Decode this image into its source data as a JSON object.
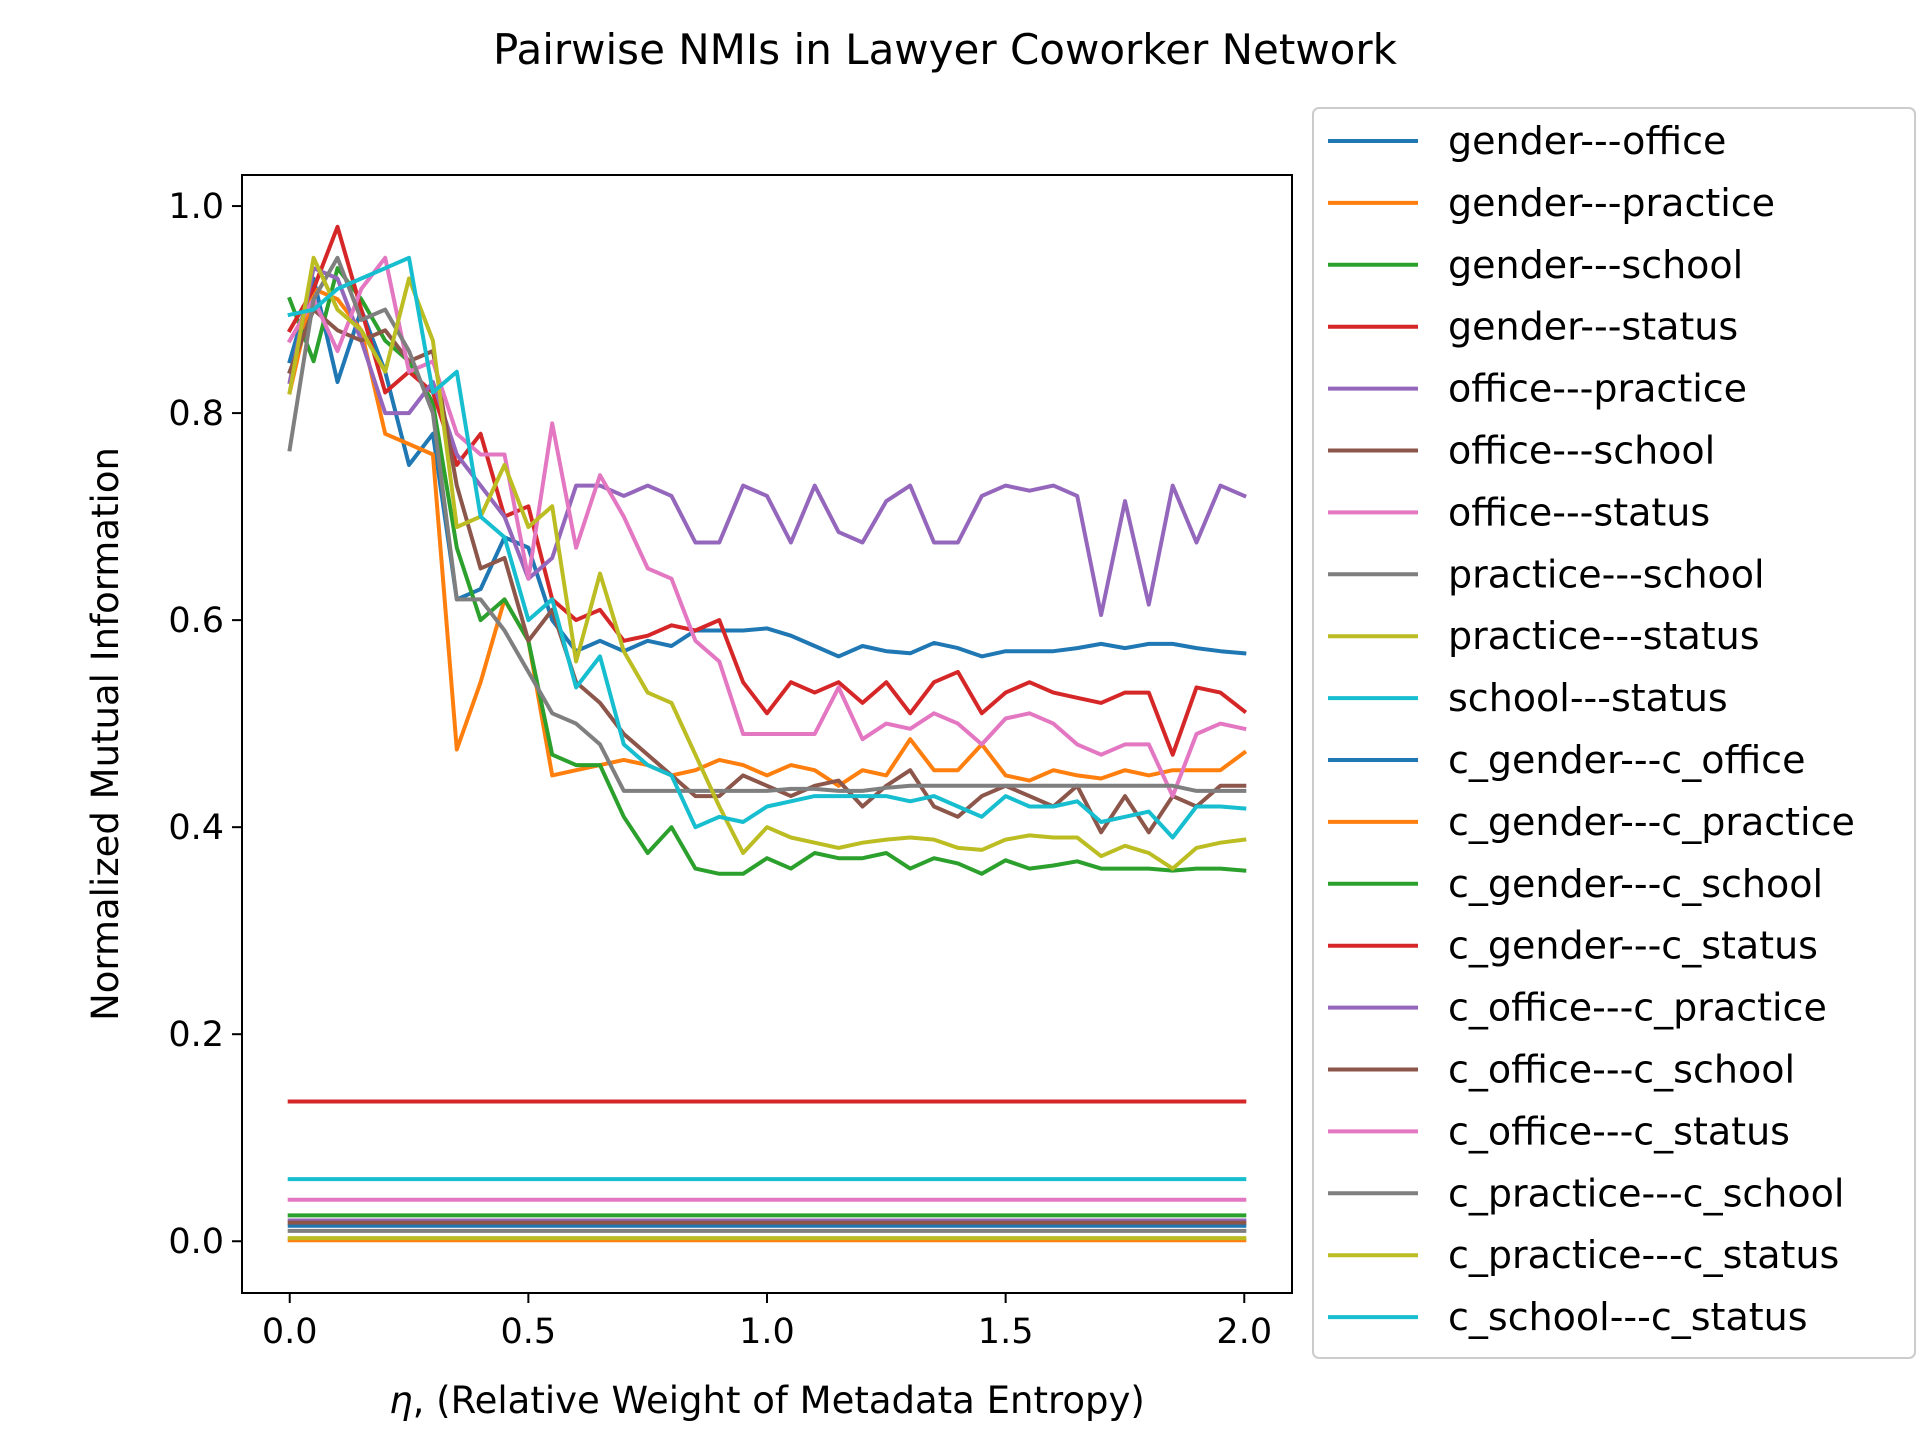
{
  "chart_data": {
    "type": "line",
    "title": "Pairwise NMIs in Lawyer Coworker Network",
    "xlabel_symbol": "η",
    "xlabel_rest": ", (Relative Weight of Metadata Entropy)",
    "ylabel": "Normalized Mutual Information",
    "xlim": [
      -0.1,
      2.1
    ],
    "ylim": [
      -0.05,
      1.03
    ],
    "xticks": [
      0.0,
      0.5,
      1.0,
      1.5,
      2.0
    ],
    "xtick_labels": [
      "0.0",
      "0.5",
      "1.0",
      "1.5",
      "2.0"
    ],
    "yticks": [
      0.0,
      0.2,
      0.4,
      0.6,
      0.8,
      1.0
    ],
    "ytick_labels": [
      "0.0",
      "0.2",
      "0.4",
      "0.6",
      "0.8",
      "1.0"
    ],
    "grid": false,
    "legend_position": "outside right",
    "x": [
      0.0,
      0.05,
      0.1,
      0.15,
      0.2,
      0.25,
      0.3,
      0.35,
      0.4,
      0.45,
      0.5,
      0.55,
      0.6,
      0.65,
      0.7,
      0.75,
      0.8,
      0.85,
      0.9,
      0.95,
      1.0,
      1.05,
      1.1,
      1.15,
      1.2,
      1.25,
      1.3,
      1.35,
      1.4,
      1.45,
      1.5,
      1.55,
      1.6,
      1.65,
      1.7,
      1.75,
      1.8,
      1.85,
      1.9,
      1.95,
      2.0
    ],
    "series": [
      {
        "name": "gender---office",
        "color": "#1f77b4",
        "values": [
          0.015,
          0.015,
          0.015,
          0.015,
          0.015,
          0.015,
          0.015,
          0.015,
          0.015,
          0.015,
          0.015,
          0.015,
          0.015,
          0.015,
          0.015,
          0.015,
          0.015,
          0.015,
          0.015,
          0.015,
          0.015,
          0.015,
          0.015,
          0.015,
          0.015,
          0.015,
          0.015,
          0.015,
          0.015,
          0.015,
          0.015,
          0.015,
          0.015,
          0.015,
          0.015,
          0.015,
          0.015,
          0.015,
          0.015,
          0.015,
          0.015
        ]
      },
      {
        "name": "gender---practice",
        "color": "#ff7f0e",
        "values": [
          0.001,
          0.001,
          0.001,
          0.001,
          0.001,
          0.001,
          0.001,
          0.001,
          0.001,
          0.001,
          0.001,
          0.001,
          0.001,
          0.001,
          0.001,
          0.001,
          0.001,
          0.001,
          0.001,
          0.001,
          0.001,
          0.001,
          0.001,
          0.001,
          0.001,
          0.001,
          0.001,
          0.001,
          0.001,
          0.001,
          0.001,
          0.001,
          0.001,
          0.001,
          0.001,
          0.001,
          0.001,
          0.001,
          0.001,
          0.001,
          0.001
        ]
      },
      {
        "name": "gender---school",
        "color": "#2ca02c",
        "values": [
          0.025,
          0.025,
          0.025,
          0.025,
          0.025,
          0.025,
          0.025,
          0.025,
          0.025,
          0.025,
          0.025,
          0.025,
          0.025,
          0.025,
          0.025,
          0.025,
          0.025,
          0.025,
          0.025,
          0.025,
          0.025,
          0.025,
          0.025,
          0.025,
          0.025,
          0.025,
          0.025,
          0.025,
          0.025,
          0.025,
          0.025,
          0.025,
          0.025,
          0.025,
          0.025,
          0.025,
          0.025,
          0.025,
          0.025,
          0.025,
          0.025
        ]
      },
      {
        "name": "gender---status",
        "color": "#d62728",
        "values": [
          0.135,
          0.135,
          0.135,
          0.135,
          0.135,
          0.135,
          0.135,
          0.135,
          0.135,
          0.135,
          0.135,
          0.135,
          0.135,
          0.135,
          0.135,
          0.135,
          0.135,
          0.135,
          0.135,
          0.135,
          0.135,
          0.135,
          0.135,
          0.135,
          0.135,
          0.135,
          0.135,
          0.135,
          0.135,
          0.135,
          0.135,
          0.135,
          0.135,
          0.135,
          0.135,
          0.135,
          0.135,
          0.135,
          0.135,
          0.135,
          0.135
        ]
      },
      {
        "name": "office---practice",
        "color": "#9467bd",
        "values": [
          0.02,
          0.02,
          0.02,
          0.02,
          0.02,
          0.02,
          0.02,
          0.02,
          0.02,
          0.02,
          0.02,
          0.02,
          0.02,
          0.02,
          0.02,
          0.02,
          0.02,
          0.02,
          0.02,
          0.02,
          0.02,
          0.02,
          0.02,
          0.02,
          0.02,
          0.02,
          0.02,
          0.02,
          0.02,
          0.02,
          0.02,
          0.02,
          0.02,
          0.02,
          0.02,
          0.02,
          0.02,
          0.02,
          0.02,
          0.02,
          0.02
        ]
      },
      {
        "name": "office---school",
        "color": "#8c564b",
        "values": [
          0.018,
          0.018,
          0.018,
          0.018,
          0.018,
          0.018,
          0.018,
          0.018,
          0.018,
          0.018,
          0.018,
          0.018,
          0.018,
          0.018,
          0.018,
          0.018,
          0.018,
          0.018,
          0.018,
          0.018,
          0.018,
          0.018,
          0.018,
          0.018,
          0.018,
          0.018,
          0.018,
          0.018,
          0.018,
          0.018,
          0.018,
          0.018,
          0.018,
          0.018,
          0.018,
          0.018,
          0.018,
          0.018,
          0.018,
          0.018,
          0.018
        ]
      },
      {
        "name": "office---status",
        "color": "#e377c2",
        "values": [
          0.04,
          0.04,
          0.04,
          0.04,
          0.04,
          0.04,
          0.04,
          0.04,
          0.04,
          0.04,
          0.04,
          0.04,
          0.04,
          0.04,
          0.04,
          0.04,
          0.04,
          0.04,
          0.04,
          0.04,
          0.04,
          0.04,
          0.04,
          0.04,
          0.04,
          0.04,
          0.04,
          0.04,
          0.04,
          0.04,
          0.04,
          0.04,
          0.04,
          0.04,
          0.04,
          0.04,
          0.04,
          0.04,
          0.04,
          0.04,
          0.04
        ]
      },
      {
        "name": "practice---school",
        "color": "#7f7f7f",
        "values": [
          0.01,
          0.01,
          0.01,
          0.01,
          0.01,
          0.01,
          0.01,
          0.01,
          0.01,
          0.01,
          0.01,
          0.01,
          0.01,
          0.01,
          0.01,
          0.01,
          0.01,
          0.01,
          0.01,
          0.01,
          0.01,
          0.01,
          0.01,
          0.01,
          0.01,
          0.01,
          0.01,
          0.01,
          0.01,
          0.01,
          0.01,
          0.01,
          0.01,
          0.01,
          0.01,
          0.01,
          0.01,
          0.01,
          0.01,
          0.01,
          0.01
        ]
      },
      {
        "name": "practice---status",
        "color": "#bcbd22",
        "values": [
          0.003,
          0.003,
          0.003,
          0.003,
          0.003,
          0.003,
          0.003,
          0.003,
          0.003,
          0.003,
          0.003,
          0.003,
          0.003,
          0.003,
          0.003,
          0.003,
          0.003,
          0.003,
          0.003,
          0.003,
          0.003,
          0.003,
          0.003,
          0.003,
          0.003,
          0.003,
          0.003,
          0.003,
          0.003,
          0.003,
          0.003,
          0.003,
          0.003,
          0.003,
          0.003,
          0.003,
          0.003,
          0.003,
          0.003,
          0.003,
          0.003
        ]
      },
      {
        "name": "school---status",
        "color": "#17becf",
        "values": [
          0.06,
          0.06,
          0.06,
          0.06,
          0.06,
          0.06,
          0.06,
          0.06,
          0.06,
          0.06,
          0.06,
          0.06,
          0.06,
          0.06,
          0.06,
          0.06,
          0.06,
          0.06,
          0.06,
          0.06,
          0.06,
          0.06,
          0.06,
          0.06,
          0.06,
          0.06,
          0.06,
          0.06,
          0.06,
          0.06,
          0.06,
          0.06,
          0.06,
          0.06,
          0.06,
          0.06,
          0.06,
          0.06,
          0.06,
          0.06,
          0.06
        ]
      },
      {
        "name": "c_gender---c_office",
        "color": "#1f77b4",
        "values": [
          0.85,
          0.93,
          0.83,
          0.9,
          0.84,
          0.75,
          0.78,
          0.62,
          0.63,
          0.68,
          0.67,
          0.6,
          0.57,
          0.58,
          0.57,
          0.58,
          0.575,
          0.59,
          0.59,
          0.59,
          0.592,
          0.585,
          0.575,
          0.565,
          0.575,
          0.57,
          0.568,
          0.578,
          0.573,
          0.565,
          0.57,
          0.57,
          0.57,
          0.573,
          0.577,
          0.573,
          0.577,
          0.577,
          0.573,
          0.57,
          0.568
        ]
      },
      {
        "name": "c_gender---c_practice",
        "color": "#ff7f0e",
        "values": [
          0.82,
          0.92,
          0.91,
          0.88,
          0.78,
          0.77,
          0.76,
          0.475,
          0.54,
          0.62,
          0.58,
          0.45,
          0.455,
          0.46,
          0.465,
          0.46,
          0.45,
          0.455,
          0.465,
          0.46,
          0.45,
          0.46,
          0.455,
          0.44,
          0.455,
          0.45,
          0.485,
          0.455,
          0.455,
          0.48,
          0.45,
          0.445,
          0.455,
          0.45,
          0.447,
          0.455,
          0.45,
          0.455,
          0.455,
          0.455,
          0.472
        ]
      },
      {
        "name": "c_gender---c_school",
        "color": "#2ca02c",
        "values": [
          0.91,
          0.85,
          0.94,
          0.91,
          0.87,
          0.85,
          0.81,
          0.67,
          0.6,
          0.62,
          0.58,
          0.47,
          0.46,
          0.46,
          0.41,
          0.375,
          0.4,
          0.36,
          0.355,
          0.355,
          0.37,
          0.36,
          0.375,
          0.37,
          0.37,
          0.375,
          0.36,
          0.37,
          0.365,
          0.355,
          0.368,
          0.36,
          0.363,
          0.367,
          0.36,
          0.36,
          0.36,
          0.358,
          0.36,
          0.36,
          0.358
        ]
      },
      {
        "name": "c_gender---c_status",
        "color": "#d62728",
        "values": [
          0.88,
          0.92,
          0.98,
          0.9,
          0.82,
          0.84,
          0.82,
          0.75,
          0.78,
          0.7,
          0.71,
          0.62,
          0.6,
          0.61,
          0.58,
          0.585,
          0.595,
          0.59,
          0.6,
          0.54,
          0.51,
          0.54,
          0.53,
          0.54,
          0.52,
          0.54,
          0.51,
          0.54,
          0.55,
          0.51,
          0.53,
          0.54,
          0.53,
          0.525,
          0.52,
          0.53,
          0.53,
          0.47,
          0.535,
          0.53,
          0.512
        ]
      },
      {
        "name": "c_office---c_practice",
        "color": "#9467bd",
        "values": [
          0.83,
          0.94,
          0.93,
          0.87,
          0.8,
          0.8,
          0.83,
          0.76,
          0.73,
          0.7,
          0.64,
          0.66,
          0.73,
          0.73,
          0.72,
          0.73,
          0.72,
          0.675,
          0.675,
          0.73,
          0.72,
          0.675,
          0.73,
          0.685,
          0.675,
          0.715,
          0.73,
          0.675,
          0.675,
          0.72,
          0.73,
          0.725,
          0.73,
          0.72,
          0.605,
          0.715,
          0.615,
          0.73,
          0.675,
          0.73,
          0.72
        ]
      },
      {
        "name": "c_office---c_school",
        "color": "#8c564b",
        "values": [
          0.84,
          0.9,
          0.88,
          0.87,
          0.88,
          0.85,
          0.86,
          0.73,
          0.65,
          0.66,
          0.58,
          0.61,
          0.54,
          0.52,
          0.49,
          0.47,
          0.45,
          0.43,
          0.43,
          0.45,
          0.44,
          0.43,
          0.44,
          0.445,
          0.42,
          0.44,
          0.455,
          0.42,
          0.41,
          0.43,
          0.44,
          0.43,
          0.42,
          0.44,
          0.395,
          0.43,
          0.395,
          0.43,
          0.42,
          0.44,
          0.44
        ]
      },
      {
        "name": "c_office---c_status",
        "color": "#e377c2",
        "values": [
          0.87,
          0.91,
          0.86,
          0.92,
          0.95,
          0.84,
          0.85,
          0.78,
          0.76,
          0.76,
          0.64,
          0.79,
          0.67,
          0.74,
          0.7,
          0.65,
          0.64,
          0.58,
          0.56,
          0.49,
          0.49,
          0.49,
          0.49,
          0.535,
          0.485,
          0.5,
          0.495,
          0.51,
          0.5,
          0.48,
          0.505,
          0.51,
          0.5,
          0.48,
          0.47,
          0.48,
          0.48,
          0.43,
          0.49,
          0.5,
          0.495
        ]
      },
      {
        "name": "c_practice---c_school",
        "color": "#7f7f7f",
        "values": [
          0.765,
          0.91,
          0.95,
          0.89,
          0.9,
          0.86,
          0.8,
          0.62,
          0.62,
          0.59,
          0.55,
          0.51,
          0.5,
          0.48,
          0.435,
          0.435,
          0.435,
          0.435,
          0.435,
          0.435,
          0.435,
          0.437,
          0.437,
          0.435,
          0.435,
          0.438,
          0.44,
          0.44,
          0.44,
          0.44,
          0.44,
          0.44,
          0.44,
          0.44,
          0.44,
          0.44,
          0.44,
          0.44,
          0.435,
          0.435,
          0.435
        ]
      },
      {
        "name": "c_practice---c_status",
        "color": "#bcbd22",
        "values": [
          0.82,
          0.95,
          0.9,
          0.88,
          0.84,
          0.93,
          0.87,
          0.69,
          0.7,
          0.75,
          0.69,
          0.71,
          0.56,
          0.645,
          0.57,
          0.53,
          0.52,
          0.47,
          0.42,
          0.375,
          0.4,
          0.39,
          0.385,
          0.38,
          0.385,
          0.388,
          0.39,
          0.388,
          0.38,
          0.378,
          0.388,
          0.392,
          0.39,
          0.39,
          0.372,
          0.382,
          0.375,
          0.36,
          0.38,
          0.385,
          0.388
        ]
      },
      {
        "name": "c_school---c_status",
        "color": "#17becf",
        "values": [
          0.895,
          0.9,
          0.92,
          0.93,
          0.94,
          0.95,
          0.82,
          0.84,
          0.7,
          0.68,
          0.6,
          0.62,
          0.535,
          0.565,
          0.48,
          0.46,
          0.45,
          0.4,
          0.41,
          0.405,
          0.42,
          0.425,
          0.43,
          0.43,
          0.43,
          0.43,
          0.425,
          0.43,
          0.42,
          0.41,
          0.43,
          0.42,
          0.42,
          0.425,
          0.405,
          0.41,
          0.415,
          0.39,
          0.42,
          0.42,
          0.418
        ]
      }
    ]
  }
}
